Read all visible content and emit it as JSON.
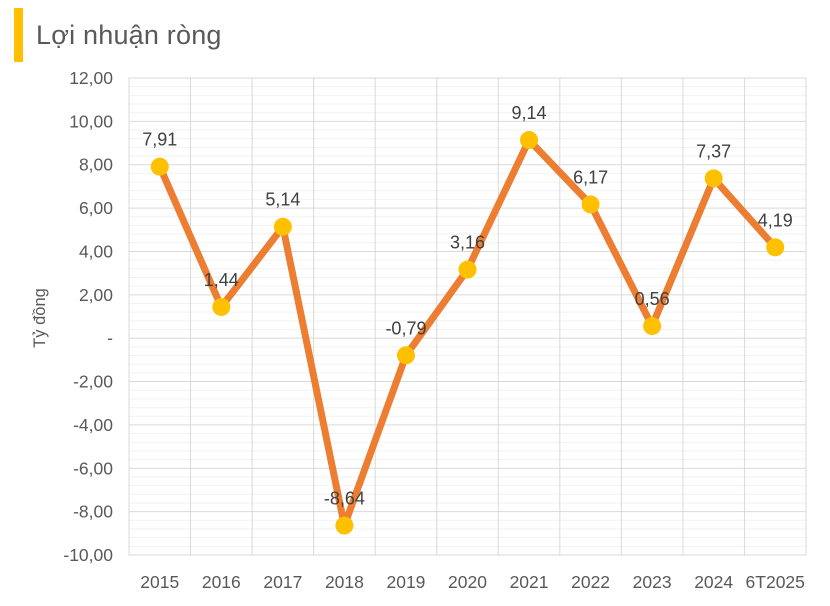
{
  "header": {
    "title": "Lợi nhuận ròng",
    "accent_color": "#FFC000"
  },
  "chart_data": {
    "type": "line",
    "title": "Lợi nhuận ròng",
    "categories": [
      "2015",
      "2016",
      "2017",
      "2018",
      "2019",
      "2020",
      "2021",
      "2022",
      "2023",
      "2024",
      "6T2025"
    ],
    "values": [
      7.91,
      1.44,
      5.14,
      -8.64,
      -0.79,
      3.16,
      9.14,
      6.17,
      0.56,
      7.37,
      4.19
    ],
    "data_labels": [
      "7,91",
      "1,44",
      "5,14",
      "-8,64",
      "-0,79",
      "3,16",
      "9,14",
      "6,17",
      "0,56",
      "7,37",
      "4,19"
    ],
    "xlabel": "",
    "ylabel": "Tỷ đồng",
    "ylim": [
      -10,
      12
    ],
    "y_major_step": 2,
    "y_minor_step": 0.4,
    "y_tick_labels": [
      "12,00",
      "10,00",
      "8,00",
      "6,00",
      "4,00",
      "2,00",
      "-",
      "-2,00",
      "-4,00",
      "-6,00",
      "-8,00",
      "-10,00"
    ],
    "grid": true,
    "legend_position": "none",
    "colors": {
      "line": "#ED7D31",
      "marker": "#FFC000",
      "major_gridline": "#D9D9D9",
      "minor_gridline": "#F2F2F2",
      "axis_text": "#595959",
      "data_label_text": "#404040"
    }
  }
}
